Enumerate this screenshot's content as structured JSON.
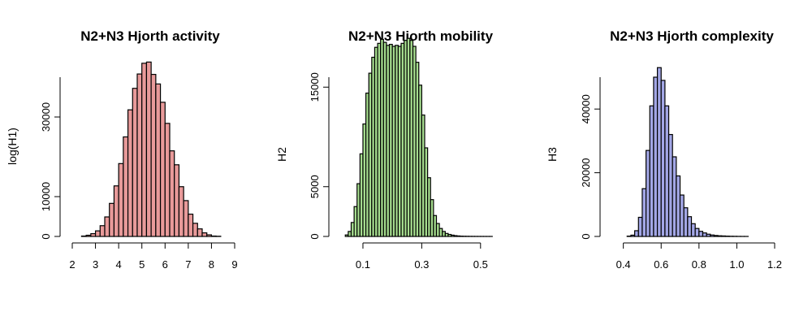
{
  "chart_data": [
    {
      "type": "bar",
      "title": "N2+N3 Hjorth activity",
      "xlabel": "",
      "ylabel": "log(H1)",
      "color": "#e89a9a",
      "xlim": [
        2,
        9
      ],
      "ylim": [
        0,
        40000
      ],
      "xticks": [
        2,
        3,
        4,
        5,
        6,
        7,
        8,
        9
      ],
      "yticks": [
        0,
        10000,
        30000
      ],
      "bin_start": 2.0,
      "bin_width": 0.2,
      "counts": [
        0,
        0,
        100,
        300,
        700,
        1400,
        2700,
        4900,
        8300,
        12700,
        18300,
        25000,
        31800,
        37200,
        40800,
        43500,
        43800,
        40700,
        38300,
        33700,
        28400,
        21500,
        18000,
        12500,
        9000,
        5600,
        3300,
        1900,
        900,
        400,
        100,
        50,
        0,
        0,
        0
      ]
    },
    {
      "type": "bar",
      "title": "N2+N3 Hjorth mobility",
      "xlabel": "",
      "ylabel": "H2",
      "color": "#a6dd8f",
      "xlim": [
        0.02,
        0.6
      ],
      "ylim": [
        0,
        16000
      ],
      "xticks": [
        0.1,
        0.3,
        0.5
      ],
      "yticks": [
        0,
        5000,
        15000
      ],
      "bin_start": 0.04,
      "bin_width": 0.01,
      "counts": [
        150,
        500,
        1400,
        3000,
        5300,
        8300,
        11300,
        14400,
        16400,
        18000,
        19000,
        19400,
        19800,
        19500,
        19200,
        19300,
        19100,
        19200,
        19100,
        19400,
        19700,
        19900,
        19700,
        19100,
        17500,
        15200,
        12200,
        8900,
        5900,
        3700,
        2100,
        1300,
        800,
        500,
        300,
        200,
        130,
        80,
        50,
        30,
        20,
        15,
        10,
        8,
        5,
        4,
        3,
        2,
        1,
        1,
        0,
        0,
        0,
        0
      ]
    },
    {
      "type": "bar",
      "title": "N2+N3 Hjorth complexity",
      "xlabel": "",
      "ylabel": "H3",
      "color": "#a3a7e6",
      "xlim": [
        0.35,
        1.2
      ],
      "ylim": [
        0,
        50000
      ],
      "xticks": [
        0.4,
        0.6,
        0.8,
        1.0,
        1.2
      ],
      "yticks": [
        0,
        20000,
        40000
      ],
      "bin_start": 0.42,
      "bin_width": 0.02,
      "counts": [
        100,
        400,
        1800,
        6000,
        15000,
        27000,
        41000,
        50000,
        53000,
        49000,
        41000,
        32000,
        25000,
        19000,
        13000,
        9000,
        6200,
        4000,
        2500,
        1600,
        1100,
        700,
        450,
        300,
        200,
        150,
        100,
        60,
        40,
        20,
        10,
        5,
        0,
        0,
        0,
        0,
        0,
        0,
        0
      ]
    }
  ]
}
